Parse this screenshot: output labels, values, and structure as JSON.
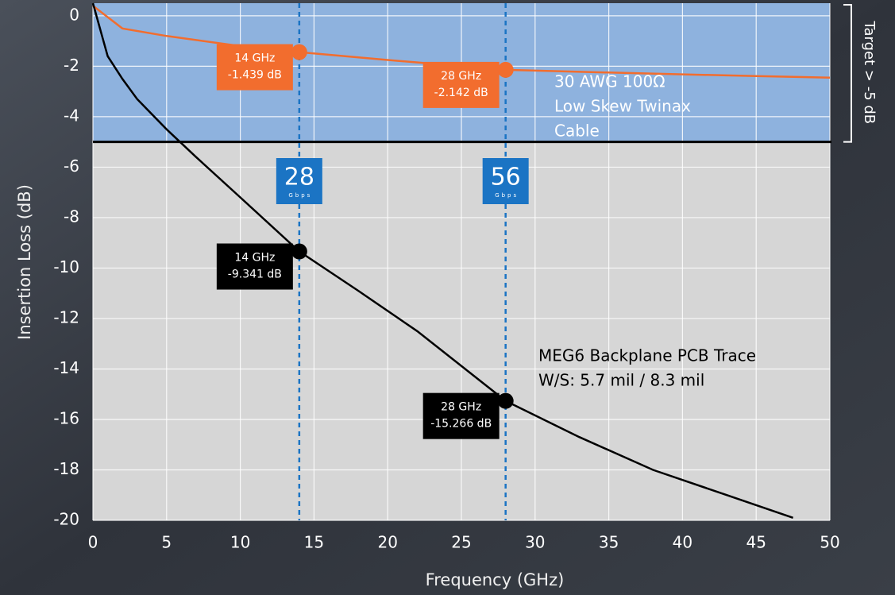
{
  "chart_data": {
    "type": "line",
    "xlabel": "Frequency (GHz)",
    "ylabel": "Insertion Loss (dB)",
    "xlim": [
      0,
      50
    ],
    "ylim": [
      -20,
      0.5
    ],
    "xticks": [
      0,
      5,
      10,
      15,
      20,
      25,
      30,
      35,
      40,
      45,
      50
    ],
    "yticks": [
      0,
      -2,
      -4,
      -6,
      -8,
      -10,
      -12,
      -14,
      -16,
      -18,
      -20
    ],
    "grid": true,
    "threshold": {
      "value": -5,
      "label": "Target > -5 dB",
      "color": "#000000",
      "above_color": "#8eb2de",
      "below_color": "#d6d6d6"
    },
    "markers": [
      {
        "x": 14,
        "badge": "28",
        "badge_sub": "Gbps",
        "color": "#1b74c4"
      },
      {
        "x": 28,
        "badge": "56",
        "badge_sub": "Gbps",
        "color": "#1b74c4"
      }
    ],
    "series": [
      {
        "name_lines": [
          "30 AWG 100Ω",
          "Low Skew Twinax",
          "Cable"
        ],
        "color": "#f26d2e",
        "x": [
          0,
          2,
          5,
          10,
          14,
          20,
          28,
          35,
          40,
          45,
          50
        ],
        "values": [
          0.4,
          -0.5,
          -0.8,
          -1.2,
          -1.439,
          -1.75,
          -2.142,
          -2.25,
          -2.32,
          -2.39,
          -2.45
        ],
        "points": [
          {
            "x": 14,
            "y": -1.439,
            "label": [
              "14 GHz",
              "-1.439 dB"
            ]
          },
          {
            "x": 28,
            "y": -2.142,
            "label": [
              "28 GHz",
              "-2.142 dB"
            ]
          }
        ]
      },
      {
        "name_lines": [
          "MEG6 Backplane PCB Trace",
          "W/S: 5.7 mil / 8.3 mil"
        ],
        "color": "#000000",
        "x": [
          0,
          1,
          2,
          3,
          5,
          7,
          10,
          14,
          18,
          22,
          28,
          33,
          38,
          43,
          47.5
        ],
        "values": [
          0.5,
          -1.6,
          -2.5,
          -3.3,
          -4.5,
          -5.6,
          -7.2,
          -9.341,
          -10.9,
          -12.5,
          -15.266,
          -16.7,
          -18.0,
          -19.0,
          -19.9
        ],
        "points": [
          {
            "x": 14,
            "y": -9.341,
            "label": [
              "14 GHz",
              "-9.341 dB"
            ]
          },
          {
            "x": 28,
            "y": -15.266,
            "label": [
              "28 GHz",
              "-15.266 dB"
            ]
          }
        ]
      }
    ]
  }
}
